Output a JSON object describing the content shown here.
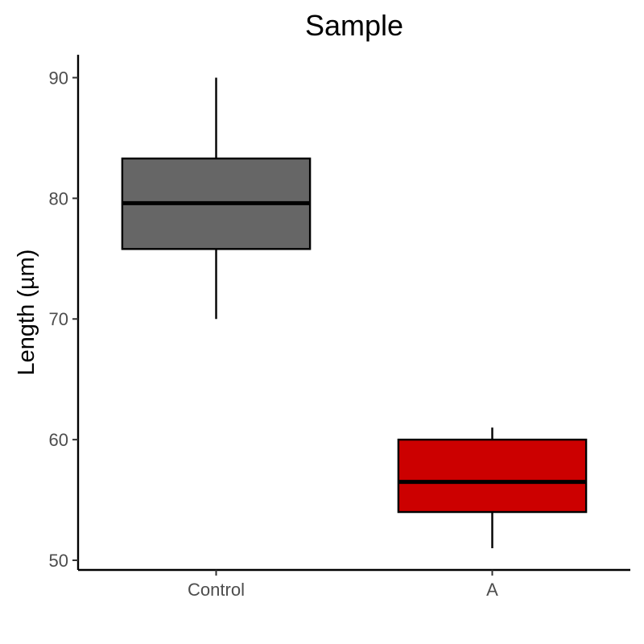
{
  "chart_data": {
    "type": "boxplot",
    "title": "Sample",
    "xlabel": "",
    "ylabel": "Length (µm)",
    "ylim": [
      49.2,
      91.9
    ],
    "yticks": [
      50,
      60,
      70,
      80,
      90
    ],
    "categories": [
      "Control",
      "A"
    ],
    "boxes": [
      {
        "category": "Control",
        "min": 70,
        "q1": 75.8,
        "median": 79.6,
        "q3": 83.3,
        "max": 90,
        "color": "#666666"
      },
      {
        "category": "A",
        "min": 51,
        "q1": 54,
        "median": 56.5,
        "q3": 60,
        "max": 61,
        "color": "#cc0000"
      }
    ],
    "grid": false,
    "legend": "none"
  }
}
